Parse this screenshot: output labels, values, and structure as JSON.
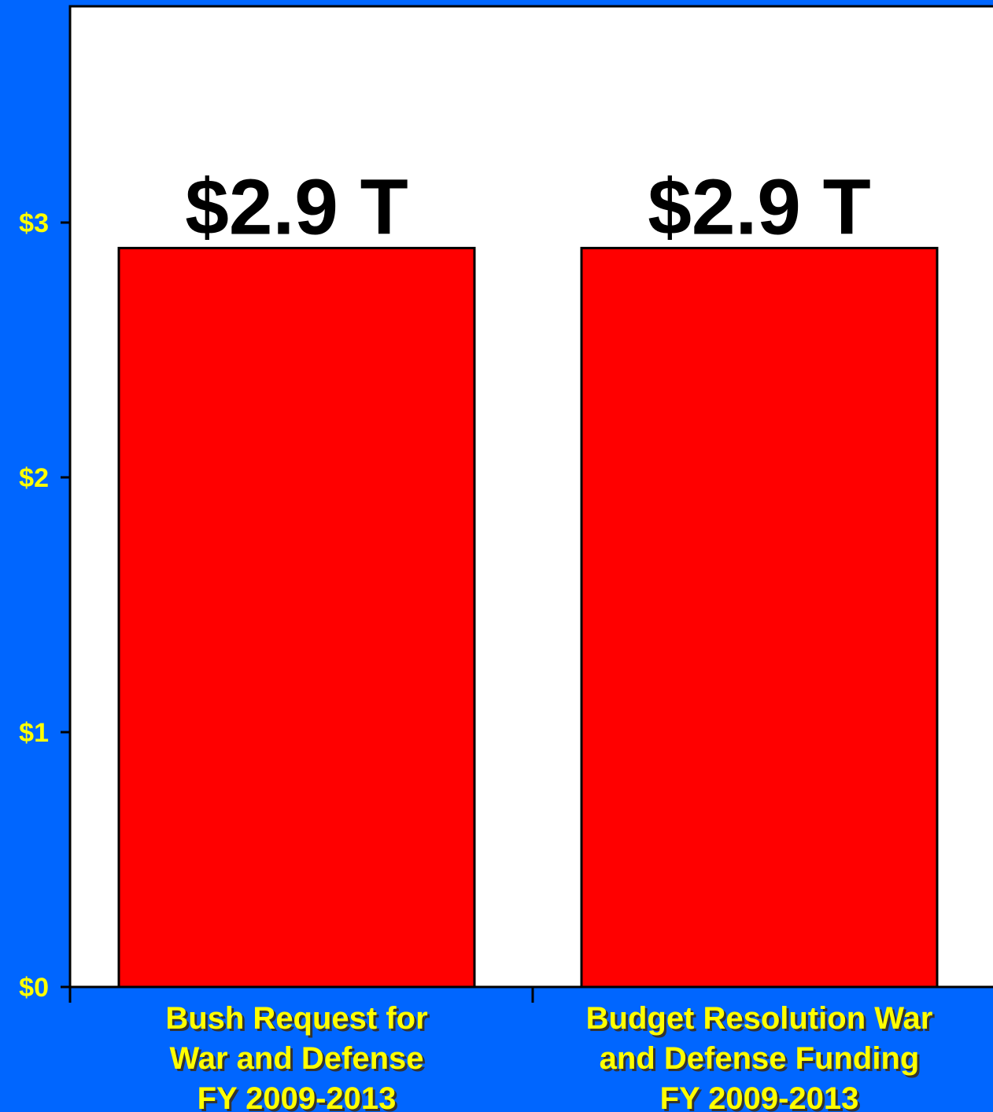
{
  "chart_data": {
    "type": "bar",
    "categories": [
      [
        "Bush Request for",
        "War and Defense",
        "FY 2009-2013"
      ],
      [
        "Budget Resolution War",
        "and Defense Funding",
        "FY 2009-2013"
      ]
    ],
    "values": [
      2.9,
      2.9
    ],
    "data_labels": [
      "$2.9 T",
      "$2.9 T"
    ],
    "yticks": [
      0,
      1,
      2,
      3
    ],
    "ytick_labels": [
      "$0",
      "$1",
      "$2",
      "$3"
    ],
    "ylim": [
      0,
      3.0
    ],
    "grid": false,
    "legend": "none",
    "colors": {
      "background": "#0066FF",
      "plot_area": "#FFFFFF",
      "bar": "#FF0000",
      "tick_labels": "#FFFF00",
      "data_labels": "#000000"
    }
  }
}
